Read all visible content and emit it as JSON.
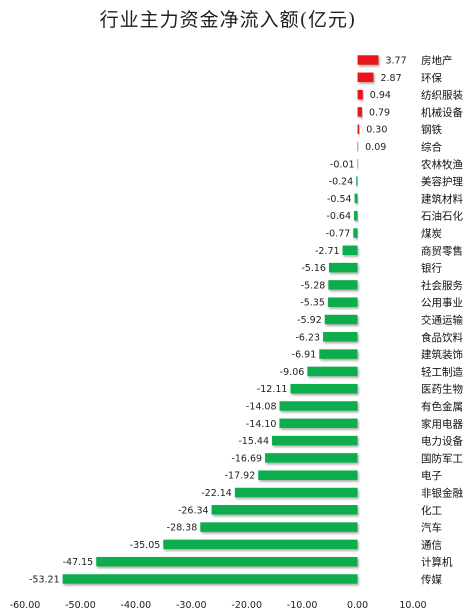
{
  "chart_data": {
    "type": "bar",
    "orientation": "horizontal",
    "title": "行业主力资金净流入额(亿元)",
    "xlabel": "",
    "ylabel": "",
    "xlim": [
      -60,
      10
    ],
    "ticks": [
      "-60.00",
      "-50.00",
      "-40.00",
      "-30.00",
      "-20.00",
      "-10.00",
      "0.00",
      "10.00"
    ],
    "grid": false,
    "legend": "none",
    "colors": {
      "positive": "#e8141c",
      "negative": "#11ad4e"
    },
    "categories": [
      "房地产",
      "环保",
      "纺织服装",
      "机械设备",
      "钢铁",
      "综合",
      "农林牧渔",
      "美容护理",
      "建筑材料",
      "石油石化",
      "煤炭",
      "商贸零售",
      "银行",
      "社会服务",
      "公用事业",
      "交通运输",
      "食品饮料",
      "建筑装饰",
      "轻工制造",
      "医药生物",
      "有色金属",
      "家用电器",
      "电力设备",
      "国防军工",
      "电子",
      "非银金融",
      "化工",
      "汽车",
      "通信",
      "计算机",
      "传媒"
    ],
    "values": [
      3.77,
      2.87,
      0.94,
      0.79,
      0.3,
      0.09,
      -0.01,
      -0.24,
      -0.54,
      -0.64,
      -0.77,
      -2.71,
      -5.16,
      -5.28,
      -5.35,
      -5.92,
      -6.23,
      -6.91,
      -9.06,
      -12.11,
      -14.08,
      -14.1,
      -15.44,
      -16.69,
      -17.92,
      -22.14,
      -26.34,
      -28.38,
      -35.05,
      -47.15,
      -53.21
    ],
    "labels": [
      "3.77",
      "2.87",
      "0.94",
      "0.79",
      "0.30",
      "0.09",
      "-0.01",
      "-0.24",
      "-0.54",
      "-0.64",
      "-0.77",
      "-2.71",
      "-5.16",
      "-5.28",
      "-5.35",
      "-5.92",
      "-6.23",
      "-6.91",
      "-9.06",
      "-12.11",
      "-14.08",
      "-14.10",
      "-15.44",
      "-16.69",
      "-17.92",
      "-22.14",
      "-26.34",
      "-28.38",
      "-35.05",
      "-47.15",
      "-53.21"
    ]
  }
}
